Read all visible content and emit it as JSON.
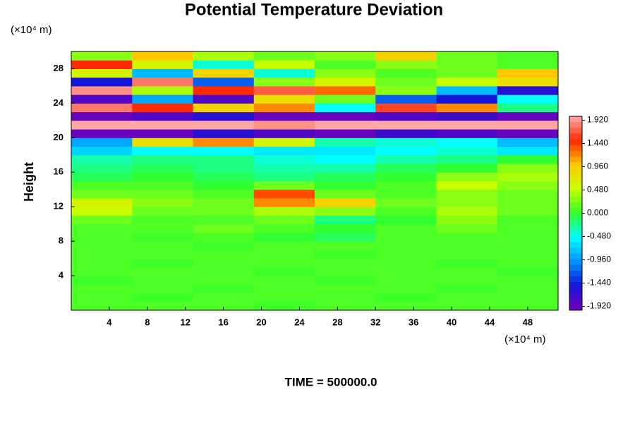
{
  "chart_data": {
    "type": "heatmap",
    "title": "Potential Temperature Deviation",
    "y_label": "Height",
    "x_unit": "(×10⁴ m)",
    "y_unit": "(×10⁴ m)",
    "footer": "TIME = 500000.0",
    "xlim": [
      0,
      51.2
    ],
    "ylim": [
      0,
      30
    ],
    "xticks": [
      4,
      8,
      12,
      16,
      20,
      24,
      28,
      32,
      36,
      40,
      44,
      48
    ],
    "yticks": [
      4,
      8,
      12,
      16,
      20,
      24,
      28
    ],
    "zlim": [
      -2,
      2
    ],
    "zticks": [
      {
        "value": 1.92,
        "label": "1.920"
      },
      {
        "value": 1.44,
        "label": "1.440"
      },
      {
        "value": 0.96,
        "label": "0.960"
      },
      {
        "value": 0.48,
        "label": "0.480"
      },
      {
        "value": 0,
        "label": "0.000"
      },
      {
        "value": -0.48,
        "label": "-0.480"
      },
      {
        "value": -0.96,
        "label": "-0.960"
      },
      {
        "value": -1.44,
        "label": "-1.440"
      },
      {
        "value": -1.92,
        "label": "-1.920"
      }
    ],
    "colormap": [
      "#7a00b8",
      "#1414d8",
      "#0090ff",
      "#00ffff",
      "#30ff30",
      "#c8ff00",
      "#ffc800",
      "#ff2a00",
      "#ffaaaa"
    ],
    "z": [
      [
        0.1,
        0.1,
        0.1,
        0.05,
        0.1,
        0.1,
        0.1,
        0.1
      ],
      [
        0.1,
        0.05,
        0.1,
        0.1,
        0.1,
        0.05,
        0.1,
        0.1
      ],
      [
        0.1,
        0.1,
        0.05,
        0.1,
        0.1,
        0.1,
        0.05,
        0.1
      ],
      [
        0.05,
        0.1,
        0.1,
        0.1,
        0.05,
        0.1,
        0.1,
        0.1
      ],
      [
        0.1,
        0.1,
        0.1,
        0.05,
        0.1,
        0.1,
        0.1,
        0.05
      ],
      [
        0.1,
        0.05,
        0.1,
        0.1,
        0.1,
        0.1,
        0.05,
        0.1
      ],
      [
        0.1,
        0.1,
        0.1,
        0.1,
        0.05,
        0.1,
        0.1,
        0.1
      ],
      [
        0.1,
        0.1,
        0.05,
        0.1,
        0.1,
        0.1,
        0.1,
        0.1
      ],
      [
        0.1,
        0.05,
        0.1,
        0,
        -0.1,
        0.1,
        0.1,
        0.1
      ],
      [
        0.1,
        0.1,
        0.2,
        0.1,
        0,
        0.1,
        0.2,
        0.1
      ],
      [
        0.2,
        0.1,
        0.1,
        0.2,
        -0.2,
        0,
        0.3,
        0.1
      ],
      [
        0.5,
        0.2,
        0.2,
        0.4,
        0.3,
        0.1,
        0.4,
        0.2
      ],
      [
        0.6,
        0.3,
        0.2,
        1.2,
        0.9,
        0.2,
        0.3,
        0.2
      ],
      [
        0.2,
        0.2,
        0.1,
        1.4,
        0.2,
        0.1,
        0.3,
        0.2
      ],
      [
        0.1,
        0.1,
        0,
        0.2,
        0,
        0.1,
        0.5,
        0.3
      ],
      [
        -0.1,
        0,
        -0.1,
        -0.2,
        -0.1,
        0,
        0.3,
        0.4
      ],
      [
        -0.2,
        -0.1,
        -0.2,
        -0.3,
        -0.3,
        -0.1,
        0,
        0.3
      ],
      [
        -0.3,
        -0.2,
        -0.2,
        -0.4,
        -0.5,
        -0.3,
        -0.2,
        0
      ],
      [
        -0.7,
        -0.5,
        -0.5,
        -0.6,
        -0.6,
        -0.5,
        -0.4,
        -0.6
      ],
      [
        -0.9,
        0.8,
        1.2,
        0.6,
        -0.3,
        -0.4,
        -0.5,
        -0.8
      ],
      [
        -1.9,
        -1.9,
        -1.6,
        -1.8,
        -1.9,
        -1.7,
        -1.8,
        -1.9
      ],
      [
        1.99,
        1.99,
        1.99,
        1.9,
        1.99,
        1.99,
        1.99,
        1.99
      ],
      [
        -1.9,
        -1.8,
        -1.6,
        -1.9,
        -1.9,
        -1.8,
        -1.7,
        -1.9
      ],
      [
        1.8,
        1.5,
        0.9,
        1.2,
        -0.5,
        1.6,
        1.2,
        -0.2
      ],
      [
        -1.8,
        -0.9,
        -1.8,
        0.8,
        0.2,
        -1.2,
        -1.5,
        -0.5
      ],
      [
        1.9,
        0.4,
        1.5,
        1.7,
        1.3,
        0.3,
        -0.8,
        -1.6
      ],
      [
        -1.5,
        1.8,
        -1.2,
        0.3,
        0.6,
        0.2,
        0.5,
        0.8
      ],
      [
        0.6,
        -0.8,
        0.9,
        -0.4,
        0.3,
        0.1,
        0.2,
        1.0
      ],
      [
        1.5,
        0.6,
        -0.4,
        0.5,
        0.1,
        0.3,
        0.2,
        0.1
      ],
      [
        0.3,
        1.0,
        0.4,
        0.2,
        0.3,
        0.9,
        0.2,
        0.1
      ]
    ]
  }
}
